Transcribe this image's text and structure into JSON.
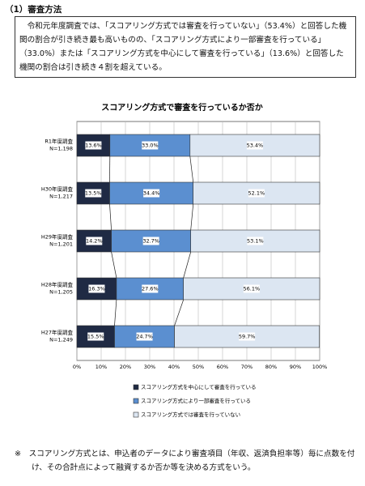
{
  "heading": "（1）審査方法",
  "summary": "令和元年度調査では、「スコアリング方式では審査を行っていない」（53.4%）と回答した機関の割合が引き続き最も高いものの、「スコアリング方式により一部審査を行っている」（33.0%）または「スコアリング方式を中心にして審査を行っている」（13.6%）と回答した機関の割合は引き続き４割を超えている。",
  "footnote": "※　スコアリング方式とは、申込者のデータにより審査項目（年収、返済負担率等）毎に点数を付け、その合計点によって融資するか否か等を決める方式をいう。",
  "chart_data": {
    "type": "stacked-bar-horizontal",
    "title": "スコアリング方式で審査を行っているか否か",
    "categories": [
      "R1年度調査",
      "H30年度調査",
      "H29年度調査",
      "H28年度調査",
      "H27年度調査"
    ],
    "sample_sizes": [
      "N=1,198",
      "N=1,217",
      "N=1,201",
      "N=1,205",
      "N=1,249"
    ],
    "series": [
      {
        "name": "スコアリング方式を中心にして審査を行っている",
        "color": "#1f2a44",
        "values": [
          13.6,
          13.5,
          14.2,
          16.3,
          15.5
        ],
        "value_labels": [
          "13.6%",
          "13.5%",
          "14.2%",
          "16.3%",
          "15.5%"
        ]
      },
      {
        "name": "スコアリング方式により一部審査を行っている",
        "color": "#5b8fd0",
        "values": [
          33.0,
          34.4,
          32.7,
          27.6,
          24.7
        ],
        "value_labels": [
          "33.0%",
          "34.4%",
          "32.7%",
          "27.6%",
          "24.7%"
        ]
      },
      {
        "name": "スコアリング方式では審査を行っていない",
        "color": "#dce6f2",
        "values": [
          53.4,
          52.1,
          53.1,
          56.1,
          59.7
        ],
        "value_labels": [
          "53.4%",
          "52.1%",
          "53.1%",
          "56.1%",
          "59.7%"
        ]
      }
    ],
    "xlim": [
      0,
      100
    ],
    "xticks": [
      {
        "value": 0,
        "label": "0%"
      },
      {
        "value": 10,
        "label": "10%"
      },
      {
        "value": 20,
        "label": "20%"
      },
      {
        "value": 30,
        "label": "30%"
      },
      {
        "value": 40,
        "label": "40%"
      },
      {
        "value": 50,
        "label": "50%"
      },
      {
        "value": 60,
        "label": "60%"
      },
      {
        "value": 70,
        "label": "70%"
      },
      {
        "value": 80,
        "label": "80%"
      },
      {
        "value": 90,
        "label": "90%"
      },
      {
        "value": 100,
        "label": "100%"
      }
    ],
    "grid": true
  }
}
